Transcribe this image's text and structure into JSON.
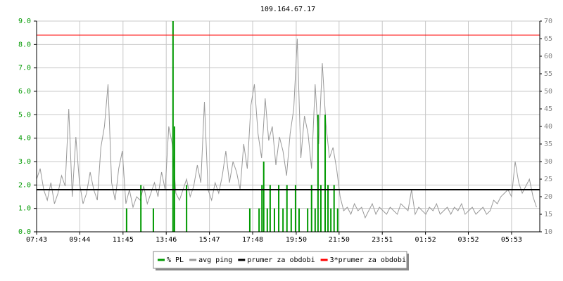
{
  "chart_data": {
    "type": "line",
    "title": "109.164.67.17",
    "xlim": [
      0,
      1409
    ],
    "xticks": [
      {
        "value": 0,
        "label": "07:43"
      },
      {
        "value": 121,
        "label": "09:44"
      },
      {
        "value": 242,
        "label": "11:45"
      },
      {
        "value": 363,
        "label": "13:46"
      },
      {
        "value": 484,
        "label": "15:47"
      },
      {
        "value": 605,
        "label": "17:48"
      },
      {
        "value": 727,
        "label": "19:50"
      },
      {
        "value": 847,
        "label": "21:50"
      },
      {
        "value": 968,
        "label": "23:51"
      },
      {
        "value": 1089,
        "label": "01:52"
      },
      {
        "value": 1209,
        "label": "03:52"
      },
      {
        "value": 1330,
        "label": "05:53"
      }
    ],
    "ylim": [
      0,
      9
    ],
    "yticks": [
      {
        "value": 0,
        "label": "0.0"
      },
      {
        "value": 1,
        "label": "1.0"
      },
      {
        "value": 2,
        "label": "2.0"
      },
      {
        "value": 3,
        "label": "3.0"
      },
      {
        "value": 4,
        "label": "4.0"
      },
      {
        "value": 5,
        "label": "5.0"
      },
      {
        "value": 6,
        "label": "6.0"
      },
      {
        "value": 7,
        "label": "7.0"
      },
      {
        "value": 8,
        "label": "8.0"
      },
      {
        "value": 9,
        "label": "9.0"
      }
    ],
    "y2lim": [
      10,
      70
    ],
    "y2ticks": [
      10,
      15,
      20,
      25,
      30,
      35,
      40,
      45,
      50,
      55,
      60,
      65,
      70
    ],
    "grid": true,
    "ytick_color": "#009900",
    "series": [
      {
        "name": "% PL",
        "color": "#009900",
        "style": "spikes",
        "x": [
          252,
          292,
          327,
          382,
          386,
          420,
          597,
          623,
          631,
          636,
          646,
          654,
          666,
          678,
          690,
          701,
          713,
          725,
          735,
          759,
          770,
          780,
          788,
          796,
          808,
          816,
          824,
          833,
          843
        ],
        "values": [
          1,
          2,
          1,
          9,
          4.5,
          2,
          1,
          1,
          2,
          3,
          1,
          2,
          1,
          2,
          1,
          2,
          1,
          2,
          1,
          1,
          2,
          1,
          5,
          2,
          5,
          2,
          1,
          2,
          1
        ]
      },
      {
        "name": "avg ping",
        "color": "#999999",
        "style": "line",
        "axis": "y2",
        "x": [
          0,
          10,
          20,
          30,
          40,
          50,
          60,
          70,
          80,
          90,
          100,
          110,
          120,
          130,
          140,
          150,
          160,
          170,
          180,
          190,
          200,
          210,
          220,
          230,
          240,
          250,
          260,
          270,
          280,
          290,
          300,
          310,
          320,
          330,
          340,
          350,
          360,
          370,
          380,
          390,
          400,
          410,
          420,
          430,
          440,
          450,
          460,
          470,
          480,
          490,
          500,
          510,
          520,
          530,
          540,
          550,
          560,
          570,
          580,
          590,
          600,
          610,
          620,
          630,
          640,
          650,
          660,
          670,
          680,
          690,
          700,
          710,
          720,
          730,
          740,
          750,
          760,
          770,
          780,
          790,
          800,
          810,
          820,
          830,
          840,
          850,
          860,
          870,
          880,
          890,
          900,
          910,
          920,
          930,
          940,
          950,
          960,
          970,
          980,
          990,
          1000,
          1010,
          1020,
          1030,
          1040,
          1050,
          1060,
          1070,
          1080,
          1090,
          1100,
          1110,
          1120,
          1130,
          1140,
          1150,
          1160,
          1170,
          1180,
          1190,
          1200,
          1210,
          1220,
          1230,
          1240,
          1250,
          1260,
          1270,
          1280,
          1290,
          1300,
          1310,
          1320,
          1330,
          1340,
          1350,
          1360,
          1370,
          1380,
          1390,
          1400
        ],
        "values": [
          25,
          28,
          22,
          19,
          24,
          18,
          21,
          26,
          23,
          45,
          20,
          37,
          24,
          18,
          21,
          27,
          22,
          19,
          34,
          40,
          52,
          24,
          19,
          28,
          33,
          18,
          22,
          17,
          20,
          19,
          23,
          18,
          21,
          24,
          20,
          27,
          22,
          40,
          35,
          21,
          19,
          22,
          25,
          20,
          23,
          29,
          24,
          47,
          22,
          19,
          24,
          21,
          26,
          33,
          24,
          30,
          27,
          22,
          35,
          28,
          46,
          52,
          38,
          31,
          48,
          36,
          40,
          29,
          37,
          33,
          26,
          38,
          45,
          65,
          31,
          43,
          38,
          28,
          52,
          35,
          58,
          41,
          31,
          34,
          28,
          20,
          16,
          17,
          15,
          18,
          16,
          17,
          14,
          16,
          18,
          15,
          17,
          16,
          15,
          17,
          16,
          15,
          18,
          17,
          16,
          22,
          15,
          17,
          16,
          15,
          17,
          16,
          18,
          15,
          16,
          17,
          15,
          17,
          16,
          18,
          15,
          16,
          17,
          15,
          16,
          17,
          15,
          16,
          19,
          18,
          20,
          21,
          22,
          20,
          30,
          24,
          21,
          23,
          25,
          20,
          17
        ]
      },
      {
        "name": "prumer za obdobi",
        "color": "#000000",
        "style": "hline",
        "axis": "y2",
        "value": 22
      },
      {
        "name": "3*prumer za obdobi",
        "color": "#ff0000",
        "style": "hline",
        "axis": "y2",
        "value": 66
      }
    ]
  }
}
